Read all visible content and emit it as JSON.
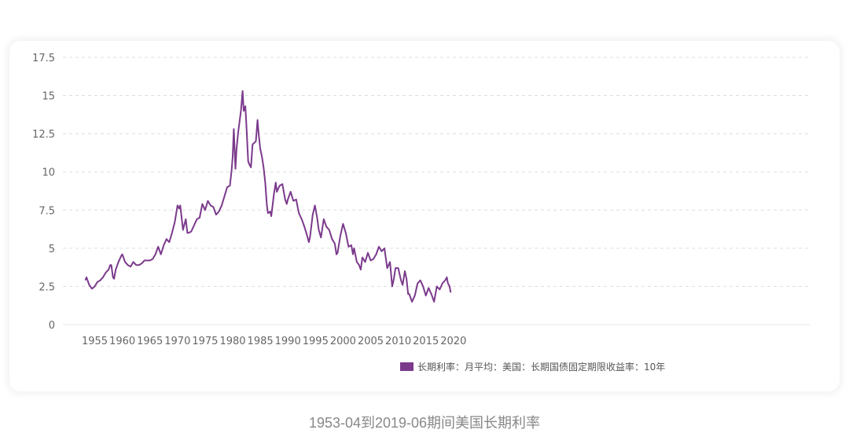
{
  "caption": "1953-04到2019-06期间美国长期利率",
  "chart_data": {
    "type": "line",
    "title": "",
    "xlabel": "",
    "ylabel": "",
    "xlim": [
      1953.2,
      2019.5
    ],
    "ylim": [
      0,
      17.5
    ],
    "x_ticks": [
      "1955",
      "1960",
      "1965",
      "1970",
      "1975",
      "1980",
      "1985",
      "1990",
      "1995",
      "2000",
      "2005",
      "2010",
      "2015",
      "2020"
    ],
    "y_ticks": [
      "0",
      "2.5",
      "5",
      "7.5",
      "10",
      "12.5",
      "15",
      "17.5"
    ],
    "grid": "horizontal dashed",
    "legend": {
      "position": "bottom-right"
    },
    "series": [
      {
        "name": "长期利率：月平均：美国：长期国债固定期限收益率：10年",
        "color": "#7b3a8c",
        "points": [
          [
            1953.3,
            2.9
          ],
          [
            1953.5,
            3.1
          ],
          [
            1954.0,
            2.6
          ],
          [
            1954.5,
            2.35
          ],
          [
            1955.0,
            2.5
          ],
          [
            1955.5,
            2.8
          ],
          [
            1956.0,
            2.9
          ],
          [
            1956.5,
            3.1
          ],
          [
            1957.0,
            3.4
          ],
          [
            1957.5,
            3.6
          ],
          [
            1957.8,
            3.9
          ],
          [
            1958.0,
            3.9
          ],
          [
            1958.3,
            3.1
          ],
          [
            1958.5,
            3.0
          ],
          [
            1958.8,
            3.6
          ],
          [
            1959.3,
            4.1
          ],
          [
            1959.8,
            4.5
          ],
          [
            1960.0,
            4.6
          ],
          [
            1960.5,
            4.1
          ],
          [
            1961.0,
            3.9
          ],
          [
            1961.5,
            3.8
          ],
          [
            1962.0,
            4.1
          ],
          [
            1962.5,
            3.9
          ],
          [
            1963.0,
            3.9
          ],
          [
            1963.5,
            4.0
          ],
          [
            1964.0,
            4.2
          ],
          [
            1964.5,
            4.2
          ],
          [
            1965.0,
            4.2
          ],
          [
            1965.5,
            4.3
          ],
          [
            1966.0,
            4.6
          ],
          [
            1966.5,
            5.1
          ],
          [
            1967.0,
            4.6
          ],
          [
            1967.5,
            5.2
          ],
          [
            1968.0,
            5.6
          ],
          [
            1968.5,
            5.4
          ],
          [
            1969.0,
            6.0
          ],
          [
            1969.5,
            6.7
          ],
          [
            1970.0,
            7.8
          ],
          [
            1970.3,
            7.6
          ],
          [
            1970.5,
            7.8
          ],
          [
            1971.0,
            6.2
          ],
          [
            1971.5,
            6.9
          ],
          [
            1971.8,
            6.0
          ],
          [
            1972.0,
            6.0
          ],
          [
            1972.5,
            6.1
          ],
          [
            1973.0,
            6.5
          ],
          [
            1973.5,
            6.9
          ],
          [
            1974.0,
            7.0
          ],
          [
            1974.5,
            7.9
          ],
          [
            1975.0,
            7.5
          ],
          [
            1975.5,
            8.1
          ],
          [
            1976.0,
            7.8
          ],
          [
            1976.5,
            7.7
          ],
          [
            1977.0,
            7.2
          ],
          [
            1977.5,
            7.4
          ],
          [
            1978.0,
            7.8
          ],
          [
            1978.5,
            8.4
          ],
          [
            1979.0,
            9.0
          ],
          [
            1979.5,
            9.1
          ],
          [
            1979.8,
            10.1
          ],
          [
            1980.0,
            11.0
          ],
          [
            1980.2,
            12.8
          ],
          [
            1980.5,
            10.2
          ],
          [
            1980.7,
            11.5
          ],
          [
            1981.0,
            12.6
          ],
          [
            1981.5,
            14.0
          ],
          [
            1981.8,
            15.3
          ],
          [
            1982.0,
            14.0
          ],
          [
            1982.3,
            14.3
          ],
          [
            1982.5,
            13.0
          ],
          [
            1982.8,
            10.7
          ],
          [
            1983.0,
            10.5
          ],
          [
            1983.3,
            10.3
          ],
          [
            1983.6,
            11.8
          ],
          [
            1983.9,
            11.9
          ],
          [
            1984.2,
            12.0
          ],
          [
            1984.5,
            13.4
          ],
          [
            1984.7,
            12.5
          ],
          [
            1985.0,
            11.5
          ],
          [
            1985.3,
            11.0
          ],
          [
            1985.6,
            10.3
          ],
          [
            1985.9,
            9.3
          ],
          [
            1986.2,
            7.8
          ],
          [
            1986.4,
            7.3
          ],
          [
            1986.8,
            7.4
          ],
          [
            1987.0,
            7.1
          ],
          [
            1987.5,
            8.6
          ],
          [
            1987.8,
            9.3
          ],
          [
            1988.0,
            8.7
          ],
          [
            1988.5,
            9.1
          ],
          [
            1989.0,
            9.2
          ],
          [
            1989.5,
            8.2
          ],
          [
            1989.8,
            7.9
          ],
          [
            1990.0,
            8.2
          ],
          [
            1990.5,
            8.7
          ],
          [
            1991.0,
            8.1
          ],
          [
            1991.5,
            8.2
          ],
          [
            1992.0,
            7.3
          ],
          [
            1992.5,
            6.9
          ],
          [
            1993.0,
            6.4
          ],
          [
            1993.5,
            5.8
          ],
          [
            1993.8,
            5.4
          ],
          [
            1994.0,
            5.7
          ],
          [
            1994.5,
            7.2
          ],
          [
            1994.9,
            7.8
          ],
          [
            1995.3,
            7.0
          ],
          [
            1995.6,
            6.2
          ],
          [
            1996.0,
            5.7
          ],
          [
            1996.5,
            6.9
          ],
          [
            1997.0,
            6.4
          ],
          [
            1997.5,
            6.2
          ],
          [
            1998.0,
            5.6
          ],
          [
            1998.5,
            5.3
          ],
          [
            1998.8,
            4.6
          ],
          [
            1999.0,
            4.7
          ],
          [
            1999.5,
            5.8
          ],
          [
            2000.0,
            6.6
          ],
          [
            2000.5,
            6.0
          ],
          [
            2001.0,
            5.1
          ],
          [
            2001.5,
            5.2
          ],
          [
            2001.8,
            4.6
          ],
          [
            2002.0,
            5.0
          ],
          [
            2002.5,
            4.1
          ],
          [
            2002.9,
            3.9
          ],
          [
            2003.2,
            3.6
          ],
          [
            2003.5,
            4.4
          ],
          [
            2004.0,
            4.1
          ],
          [
            2004.5,
            4.7
          ],
          [
            2005.0,
            4.2
          ],
          [
            2005.5,
            4.3
          ],
          [
            2006.0,
            4.6
          ],
          [
            2006.5,
            5.1
          ],
          [
            2007.0,
            4.8
          ],
          [
            2007.5,
            5.0
          ],
          [
            2008.0,
            3.7
          ],
          [
            2008.5,
            4.1
          ],
          [
            2008.9,
            2.5
          ],
          [
            2009.2,
            3.0
          ],
          [
            2009.5,
            3.7
          ],
          [
            2010.0,
            3.7
          ],
          [
            2010.5,
            2.9
          ],
          [
            2010.8,
            2.6
          ],
          [
            2011.2,
            3.5
          ],
          [
            2011.5,
            3.0
          ],
          [
            2011.8,
            2.0
          ],
          [
            2012.0,
            2.0
          ],
          [
            2012.5,
            1.5
          ],
          [
            2013.0,
            1.9
          ],
          [
            2013.5,
            2.7
          ],
          [
            2014.0,
            2.9
          ],
          [
            2014.5,
            2.5
          ],
          [
            2015.0,
            1.9
          ],
          [
            2015.5,
            2.4
          ],
          [
            2016.0,
            2.0
          ],
          [
            2016.5,
            1.5
          ],
          [
            2017.0,
            2.5
          ],
          [
            2017.5,
            2.3
          ],
          [
            2018.0,
            2.7
          ],
          [
            2018.5,
            2.9
          ],
          [
            2018.8,
            3.1
          ],
          [
            2019.0,
            2.7
          ],
          [
            2019.3,
            2.5
          ],
          [
            2019.5,
            2.1
          ]
        ]
      }
    ]
  }
}
